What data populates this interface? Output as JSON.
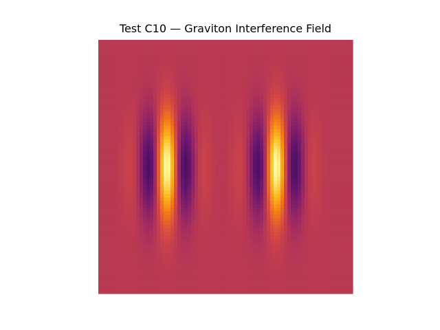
{
  "chart_data": {
    "type": "heatmap",
    "title": "Test C10 — Graviton Interference Field",
    "xlabel": "",
    "ylabel": "",
    "axes_visible": false,
    "grid": false,
    "colormap": "inferno",
    "value_range": [
      -1,
      1
    ],
    "background_value": 0,
    "sources": [
      {
        "x": 0.27,
        "y": 0.5
      },
      {
        "x": 0.7,
        "y": 0.5
      }
    ],
    "sigma_x": 0.07,
    "sigma_y": 0.14,
    "wavelength_x": 0.165
  }
}
